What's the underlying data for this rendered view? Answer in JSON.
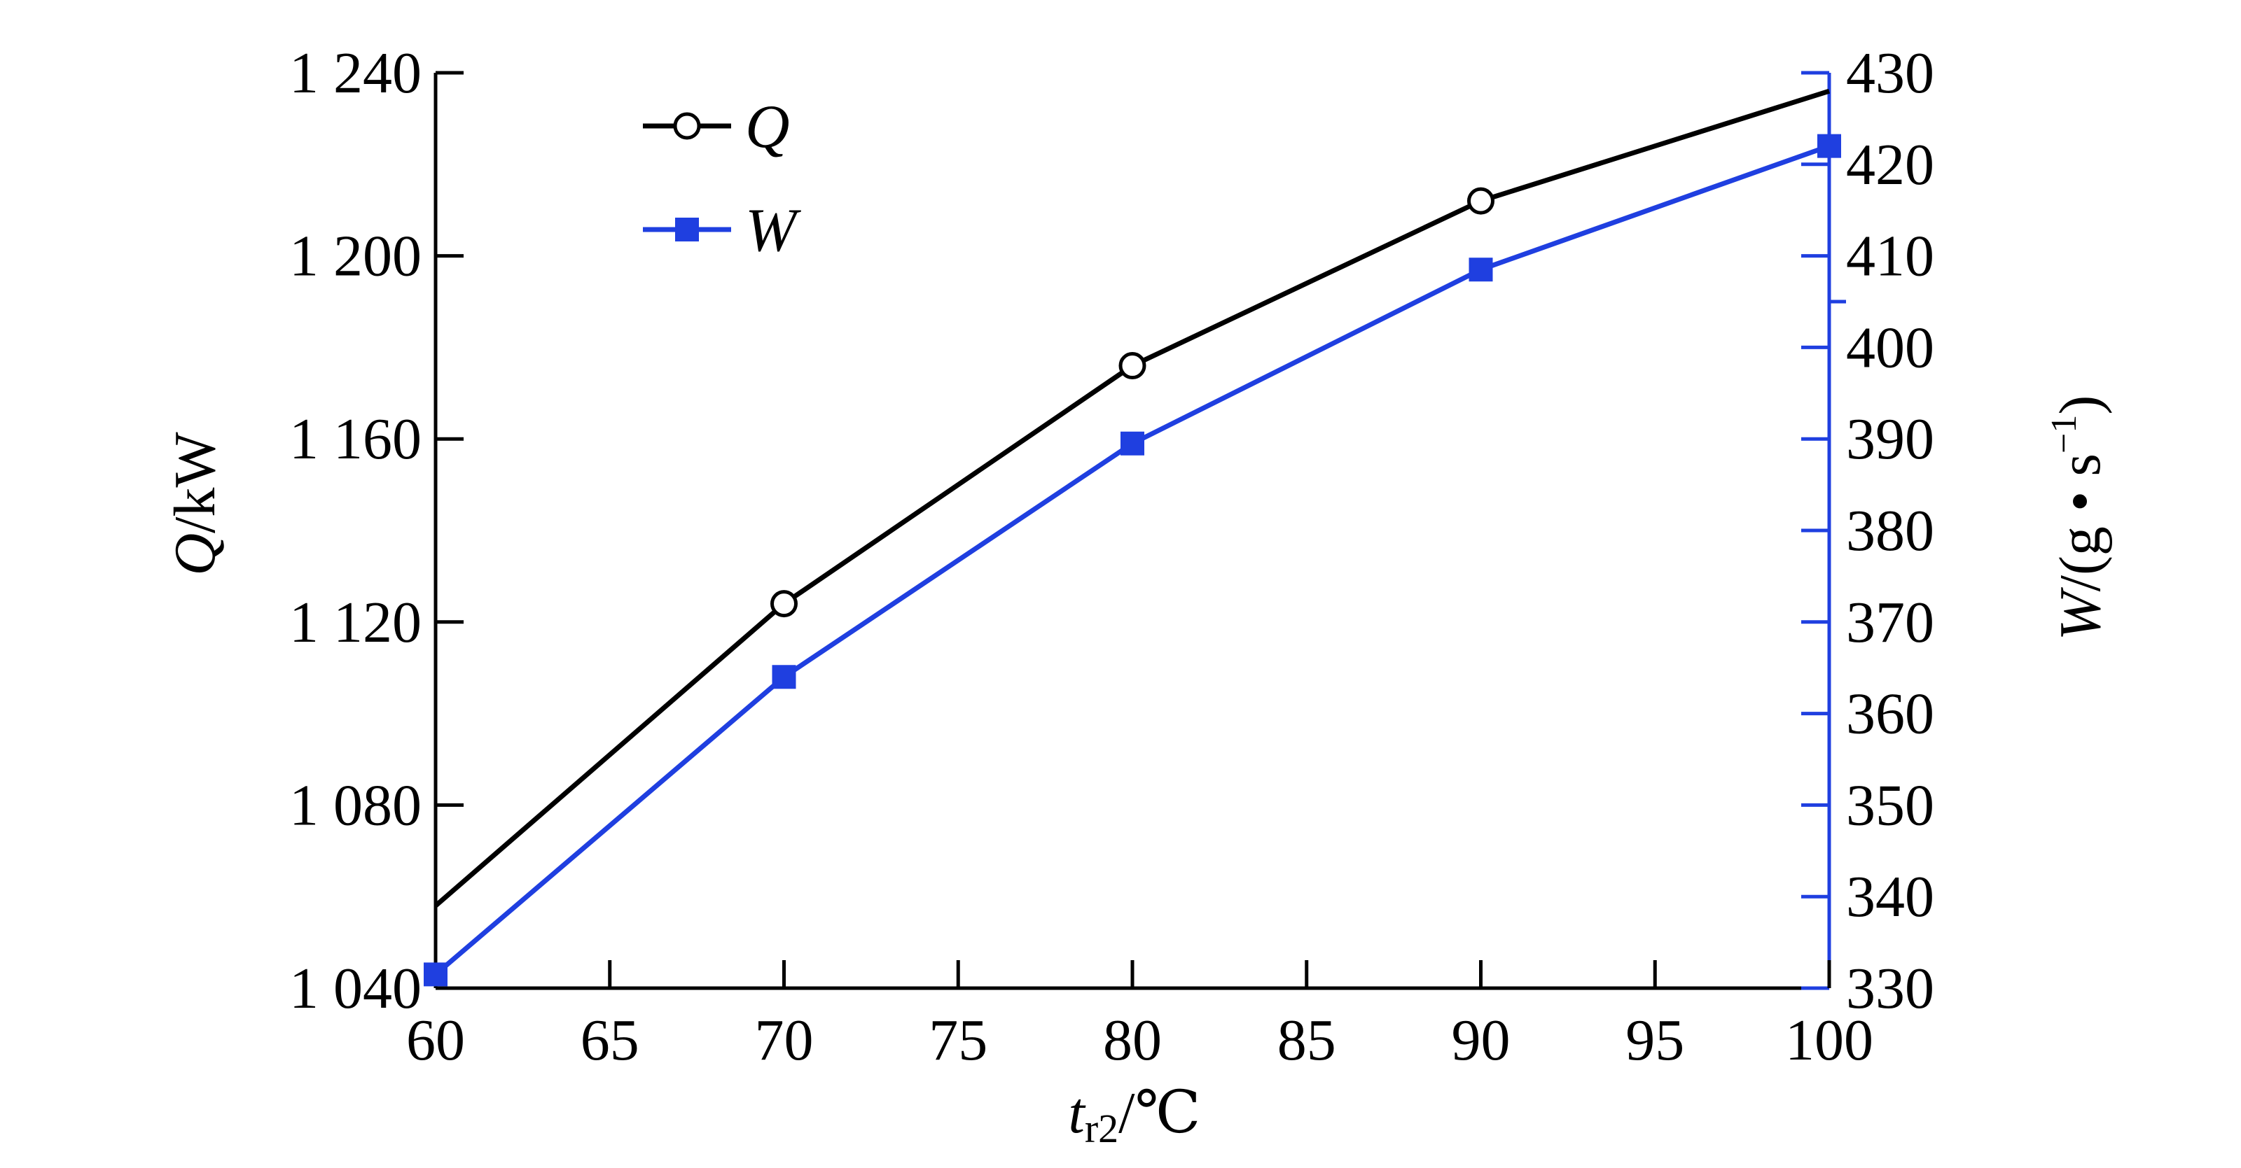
{
  "chart_data": {
    "type": "line",
    "x": [
      60,
      70,
      80,
      90,
      100
    ],
    "xlim": [
      60,
      100
    ],
    "x_ticks": [
      "60",
      "65",
      "70",
      "75",
      "80",
      "85",
      "90",
      "95",
      "100"
    ],
    "xlabel": {
      "main": "t",
      "subscript": "r2",
      "unit": "/℃"
    },
    "y_left": {
      "label": {
        "main": "Q",
        "unit": "/kW"
      },
      "lim": [
        1040,
        1240
      ],
      "ticks": [
        "1 040",
        "1 080",
        "1 120",
        "1 160",
        "1 200",
        "1 240"
      ]
    },
    "y_right": {
      "label": {
        "main": "W",
        "unit": "/(g • s",
        "sup": "−1",
        "close": ")"
      },
      "lim": [
        330,
        430
      ],
      "ticks": [
        "330",
        "340",
        "350",
        "360",
        "370",
        "380",
        "390",
        "400",
        "410",
        "420",
        "430"
      ],
      "color": "#1f3fe0"
    },
    "grid": false,
    "legend_position": "top-left",
    "series": [
      {
        "name": "Q",
        "axis": "left",
        "color": "#000000",
        "marker": "open-circle",
        "values": [
          1058,
          1124,
          1176,
          1212,
          1236
        ]
      },
      {
        "name": "W",
        "axis": "right",
        "color": "#1f3fe0",
        "marker": "filled-square",
        "values": [
          331.5,
          364,
          389.5,
          408.5,
          422
        ]
      }
    ]
  }
}
